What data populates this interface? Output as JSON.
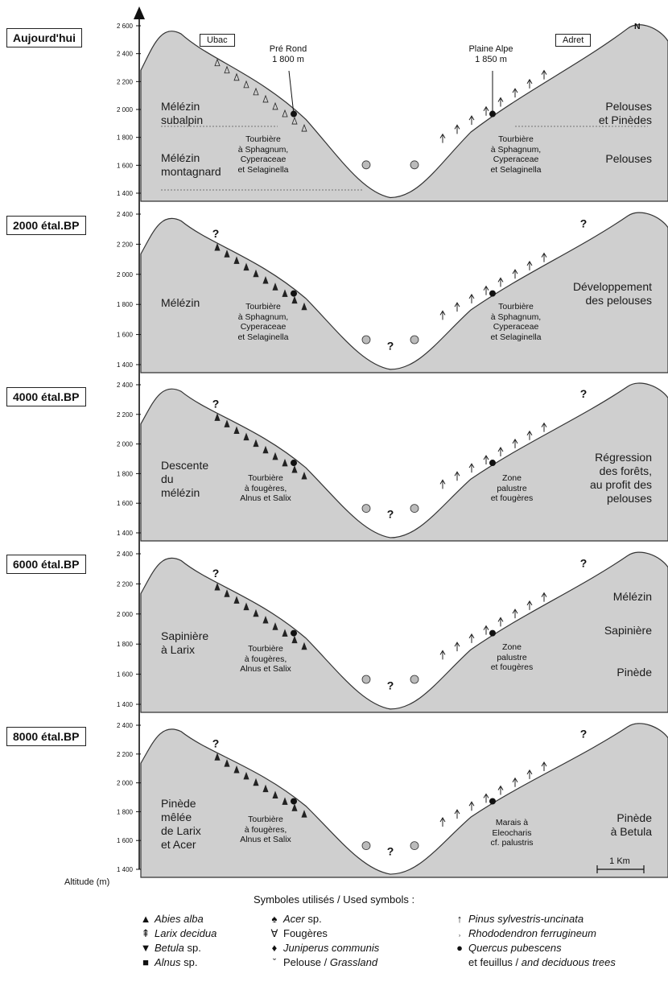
{
  "axis": {
    "label": "Altitude (m)"
  },
  "panels": [
    {
      "tag": "Aujourd'hui",
      "ticks": [
        "2 600",
        "2 400",
        "2 200",
        "2 000",
        "1 800",
        "1 600",
        "1 400"
      ],
      "left_text": [
        "Mélézin",
        "subalpin",
        "Mélézin",
        "montagnard"
      ],
      "right_text": [
        "Pelouses",
        "et Pinèdes",
        "Pelouses"
      ],
      "ubac": "Ubac",
      "adret": "Adret",
      "pre_rond": [
        "Pré Rond",
        "1 800 m"
      ],
      "plaine_alpe": [
        "Plaine Alpe",
        "1 850 m"
      ],
      "bog_left": [
        "Tourbière",
        "à Sphagnum,",
        "Cyperaceae",
        "et Selaginella"
      ],
      "bog_right": [
        "Tourbière",
        "à Sphagnum,",
        "Cyperaceae",
        "et Selaginella"
      ],
      "north": "N"
    },
    {
      "tag": "2000 étal.BP",
      "ticks": [
        "2 400",
        "2 200",
        "2 000",
        "1 800",
        "1 600",
        "1 400"
      ],
      "left_text": [
        "Mélézin"
      ],
      "right_text": [
        "Développement",
        "des pelouses"
      ],
      "bog_left": [
        "Tourbière",
        "à Sphagnum,",
        "Cyperaceae",
        "et Selaginella"
      ],
      "bog_right": [
        "Tourbière",
        "à Sphagnum,",
        "Cyperaceae",
        "et Selaginella"
      ],
      "q": "?"
    },
    {
      "tag": "4000 étal.BP",
      "ticks": [
        "2 400",
        "2 200",
        "2 000",
        "1 800",
        "1 600",
        "1 400"
      ],
      "left_text": [
        "Descente",
        "du",
        "mélézin"
      ],
      "right_text": [
        "Régression",
        "des forêts,",
        "au profit des",
        "pelouses"
      ],
      "bog_left": [
        "Tourbière",
        "à fougères,",
        "Alnus et Salix"
      ],
      "bog_right": [
        "Zone",
        "palustre",
        "et fougères"
      ],
      "q": "?"
    },
    {
      "tag": "6000 étal.BP",
      "ticks": [
        "2 400",
        "2 200",
        "2 000",
        "1 800",
        "1 600",
        "1 400"
      ],
      "left_text": [
        "Sapinière",
        "à Larix"
      ],
      "right_text": [
        "Mélézin",
        "Sapinière",
        "Pinède"
      ],
      "bog_left": [
        "Tourbière",
        "à fougères,",
        "Alnus et Salix"
      ],
      "bog_right": [
        "Zone",
        "palustre",
        "et fougères"
      ],
      "q": "?"
    },
    {
      "tag": "8000 étal.BP",
      "ticks": [
        "2 400",
        "2 200",
        "2 000",
        "1 800",
        "1 600",
        "1 400"
      ],
      "left_text": [
        "Pinède",
        "mêlée",
        "de Larix",
        "et Acer"
      ],
      "right_text": [
        "Pinède",
        "à Betula"
      ],
      "bog_left": [
        "Tourbière",
        "à fougères,",
        "Alnus et Salix"
      ],
      "bog_right": [
        "Marais à",
        "Eleocharis",
        "cf. palustris"
      ],
      "q": "?",
      "scale": "1 Km"
    }
  ],
  "legend": {
    "title": "Symboles utilisés / Used symbols :",
    "items": [
      {
        "symbol": "▲",
        "label": "Abies alba",
        "italic": "Abies alba",
        "plain": ""
      },
      {
        "symbol": "⇞",
        "label": "Larix decidua",
        "italic": "Larix decidua",
        "plain": ""
      },
      {
        "symbol": "▼",
        "label": "Betula sp.",
        "italic": "Betula",
        "plain": " sp."
      },
      {
        "symbol": "■",
        "label": "Alnus sp.",
        "italic": "Alnus",
        "plain": " sp."
      },
      {
        "symbol": "♠",
        "label": "Acer sp.",
        "italic": "Acer",
        "plain": " sp."
      },
      {
        "symbol": "∀",
        "label": "Fougères",
        "italic": "",
        "plain": "Fougères"
      },
      {
        "symbol": "♦",
        "label": "Juniperus communis",
        "italic": "Juniperus communis",
        "plain": ""
      },
      {
        "symbol": "ˇ",
        "label": "Pelouse / Grassland",
        "italic": "",
        "plain": "Pelouse / ",
        "italic2": "Grassland"
      },
      {
        "symbol": "↑",
        "label": "Pinus sylvestris-uncinata",
        "italic": "Pinus sylvestris-uncinata",
        "plain": ""
      },
      {
        "symbol": "˒",
        "label": "Rhododendron ferrugineum",
        "italic": "Rhododendron ferrugineum",
        "plain": ""
      },
      {
        "symbol": "●",
        "label": "Quercus pubescens",
        "italic": "Quercus pubescens",
        "plain": ""
      },
      {
        "symbol": "",
        "label": "et feuillus / and deciduous trees",
        "italic": "",
        "plain": "et feuillus / ",
        "italic2": "and deciduous trees"
      }
    ]
  }
}
